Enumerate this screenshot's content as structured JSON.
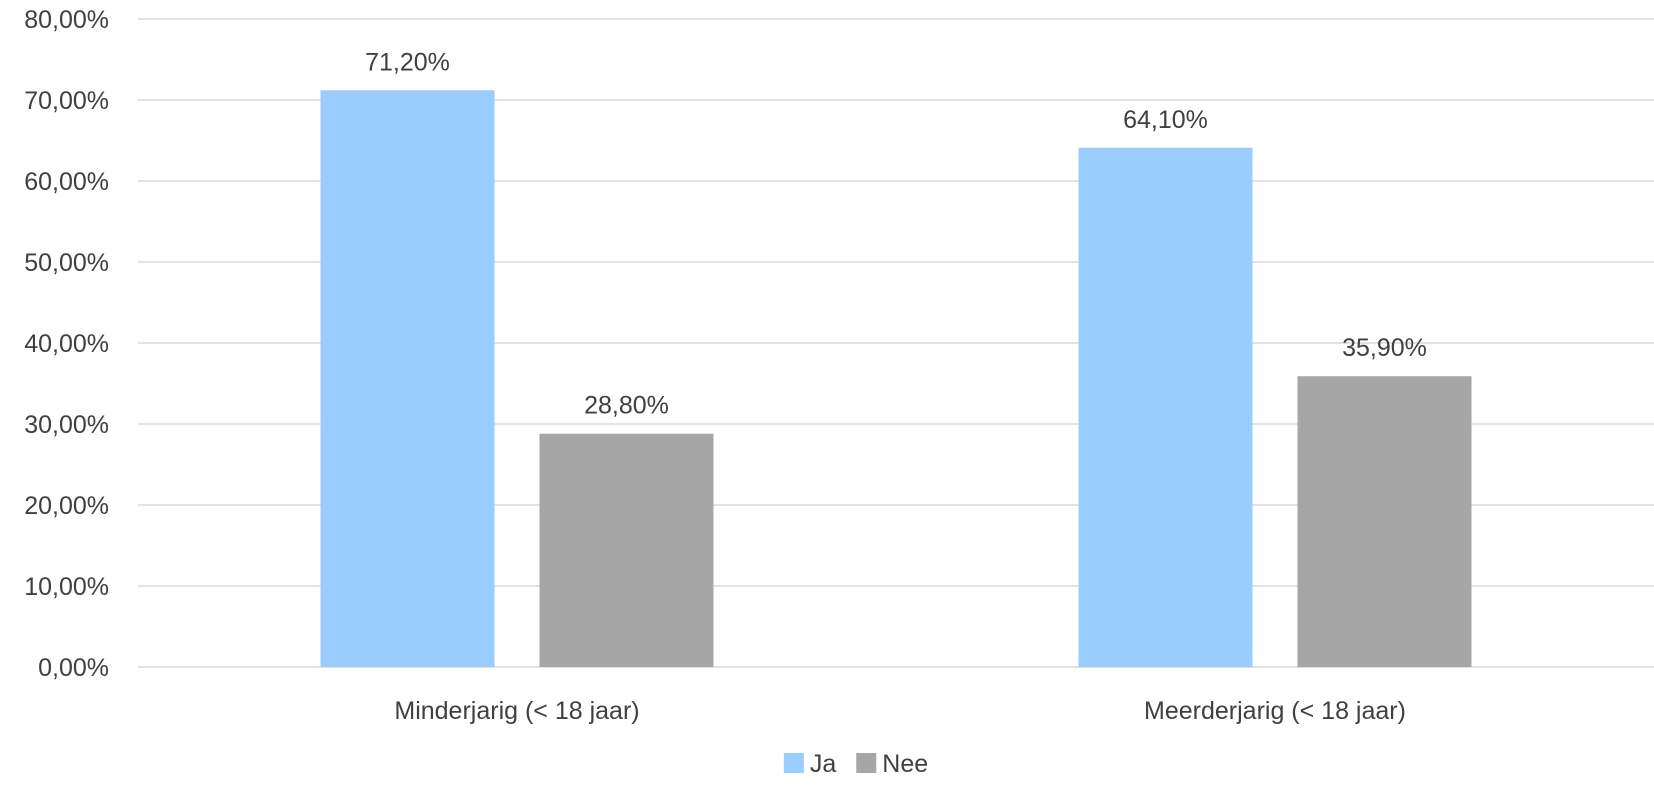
{
  "chart_data": {
    "type": "bar",
    "categories": [
      "Minderjarig (< 18 jaar)",
      "Meerderjarig (< 18 jaar)"
    ],
    "series": [
      {
        "name": "Ja",
        "values": [
          71.2,
          64.1
        ],
        "labels": [
          "71,20%",
          "64,10%"
        ],
        "color": "#99ccff"
      },
      {
        "name": "Nee",
        "values": [
          28.8,
          35.9
        ],
        "labels": [
          "28,80%",
          "35,90%"
        ],
        "color": "#a6a6a6"
      }
    ],
    "yticks": [
      {
        "value": 0,
        "label": "0,00%"
      },
      {
        "value": 10,
        "label": "10,00%"
      },
      {
        "value": 20,
        "label": "20,00%"
      },
      {
        "value": 30,
        "label": "30,00%"
      },
      {
        "value": 40,
        "label": "40,00%"
      },
      {
        "value": 50,
        "label": "50,00%"
      },
      {
        "value": 60,
        "label": "60,00%"
      },
      {
        "value": 70,
        "label": "70,00%"
      },
      {
        "value": 80,
        "label": "80,00%"
      }
    ],
    "ylim": [
      0,
      80
    ],
    "grid": true,
    "legend_position": "bottom",
    "title": "",
    "xlabel": "",
    "ylabel": ""
  }
}
